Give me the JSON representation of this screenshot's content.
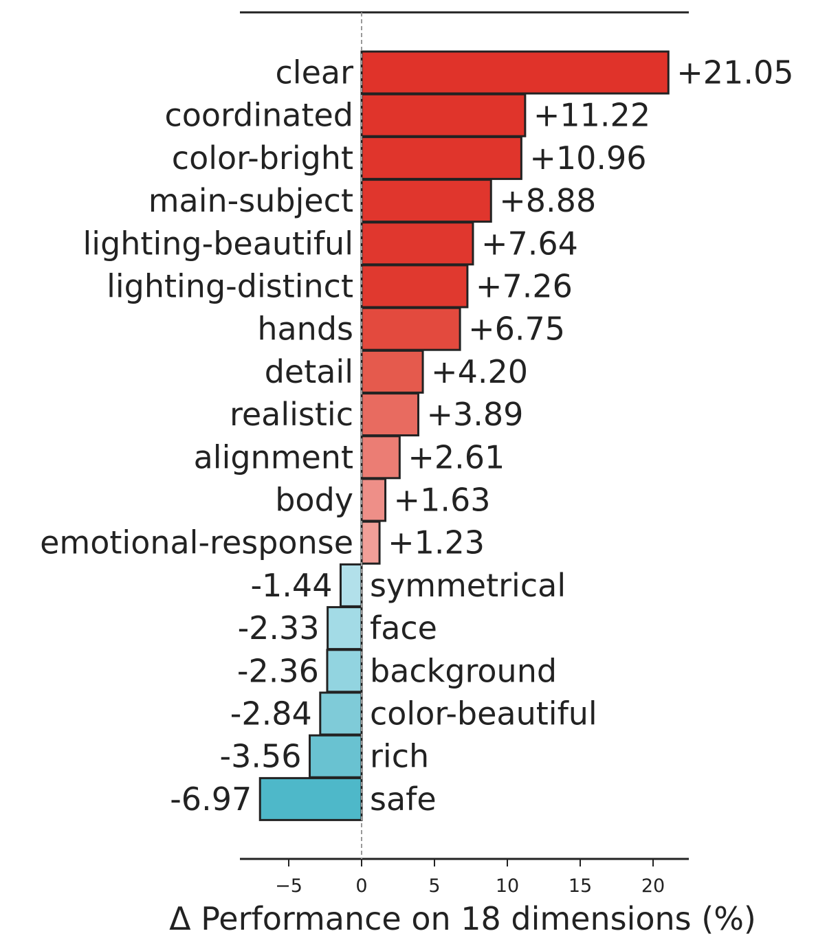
{
  "chart_data": {
    "type": "bar",
    "orientation": "horizontal",
    "title": "",
    "xlabel": "Δ Performance on 18 dimensions (%)",
    "ylabel": "",
    "xlim": [
      -8.4,
      22.5
    ],
    "xticks": [
      -5,
      0,
      5,
      10,
      15,
      20
    ],
    "xtick_labels": [
      "−5",
      "0",
      "5",
      "10",
      "15",
      "20"
    ],
    "grid": false,
    "zero_line": "dashed",
    "categories": [
      "clear",
      "coordinated",
      "color-bright",
      "main-subject",
      "lighting-beautiful",
      "lighting-distinct",
      "hands",
      "detail",
      "realistic",
      "alignment",
      "body",
      "emotional-response",
      "symmetrical",
      "face",
      "background",
      "color-beautiful",
      "rich",
      "safe"
    ],
    "values": [
      21.05,
      11.22,
      10.96,
      8.88,
      7.64,
      7.26,
      6.75,
      4.2,
      3.89,
      2.61,
      1.63,
      1.23,
      -1.44,
      -2.33,
      -2.36,
      -2.84,
      -3.56,
      -6.97
    ],
    "value_labels": [
      "+21.05",
      "+11.22",
      "+10.96",
      "+8.88",
      "+7.64",
      "+7.26",
      "+6.75",
      "+4.20",
      "+3.89",
      "+2.61",
      "+1.63",
      "+1.23",
      "-1.44",
      "-2.33",
      "-2.36",
      "-2.84",
      "-3.56",
      "-6.97"
    ],
    "colors": [
      "#e0332a",
      "#e0342b",
      "#e0352c",
      "#e0362d",
      "#e0372e",
      "#e0392f",
      "#e34a3e",
      "#e55a4d",
      "#e86b60",
      "#eb7d74",
      "#ee8f88",
      "#f29f98",
      "#b2e0ea",
      "#a3dbe6",
      "#92d4e0",
      "#7fcbd8",
      "#69c2d1",
      "#4eb8c9"
    ]
  }
}
